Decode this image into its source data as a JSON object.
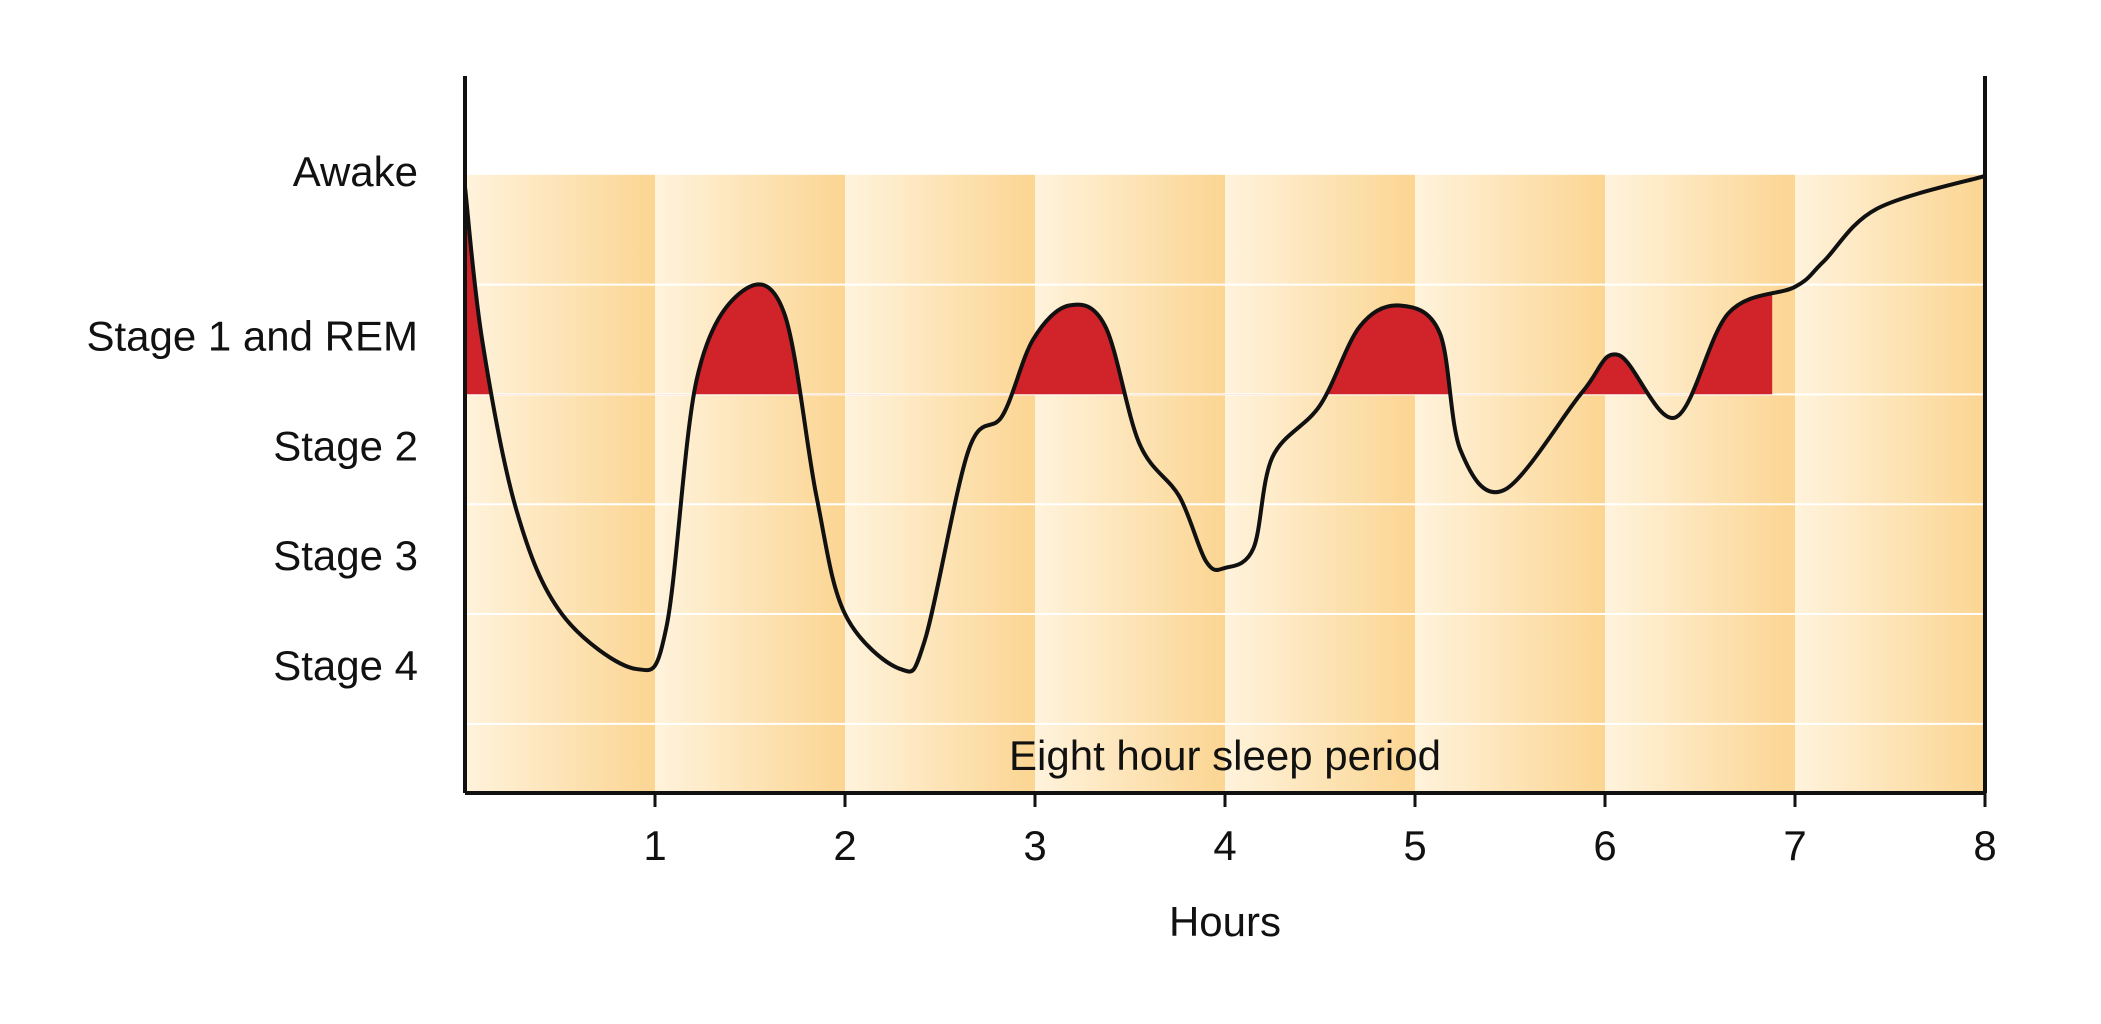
{
  "chart_data": {
    "type": "line",
    "annotation": "Eight hour sleep period",
    "x_label": "Hours",
    "xlim": [
      0,
      8
    ],
    "xticks": [
      1,
      2,
      3,
      4,
      5,
      6,
      7,
      8
    ],
    "ylim": [
      -0.13,
      6.4
    ],
    "yticks": [
      {
        "value": 5.5,
        "label": "Awake"
      },
      {
        "value": 4,
        "label": "Stage 1 and REM"
      },
      {
        "value": 3,
        "label": "Stage 2"
      },
      {
        "value": 2,
        "label": "Stage 3"
      },
      {
        "value": 1,
        "label": "Stage 4"
      }
    ],
    "ygrid": [
      0.5,
      1.5,
      2.5,
      3.5,
      4.5
    ],
    "band_top": 5.5,
    "band_colors": [
      "#fff3dc",
      "#fbd592"
    ],
    "highlight": {
      "above": 3.5,
      "until": 6.88,
      "color": "#d0232a"
    },
    "series": [
      {
        "color": "#111111",
        "x": [
          0,
          0.09,
          0.27,
          0.51,
          0.9,
          1.06,
          1.22,
          1.46,
          1.68,
          1.85,
          2.0,
          2.29,
          2.42,
          2.65,
          2.83,
          2.99,
          3.18,
          3.37,
          3.55,
          3.76,
          3.9,
          4.0,
          4.15,
          4.25,
          4.5,
          4.71,
          4.92,
          5.13,
          5.24,
          5.47,
          5.88,
          6.07,
          6.37,
          6.65,
          7.0,
          7.15,
          7.43,
          8.0
        ],
        "values": [
          5.39,
          4.0,
          2.45,
          1.5,
          1.0,
          1.38,
          3.64,
          4.44,
          4.24,
          2.57,
          1.5,
          1.0,
          1.26,
          2.99,
          3.31,
          4.0,
          4.31,
          4.12,
          3.05,
          2.57,
          1.98,
          1.92,
          2.1,
          2.93,
          3.4,
          4.12,
          4.31,
          4.06,
          2.99,
          2.63,
          3.52,
          3.86,
          3.29,
          4.24,
          4.48,
          4.71,
          5.19,
          5.49
        ]
      }
    ]
  }
}
